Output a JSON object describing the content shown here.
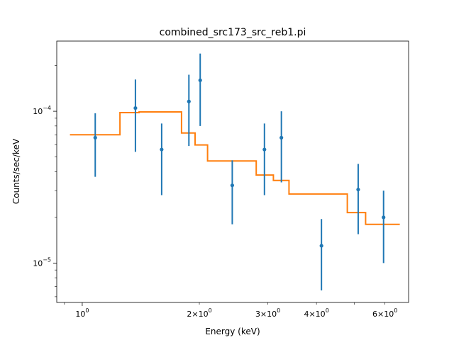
{
  "chart_data": {
    "type": "scatter",
    "title": "combined_src173_src_reb1.pi",
    "xlabel": "Energy (keV)",
    "ylabel": "Counts/sec/keV",
    "xscale": "log",
    "yscale": "log",
    "xlim": [
      0.86,
      6.9
    ],
    "ylim": [
      5.5e-06,
      0.00029
    ],
    "grid": false,
    "x_major_ticks": [
      {
        "value": 1,
        "label": "10^0"
      }
    ],
    "x_minor_ticks": [
      {
        "value": 2,
        "label": "2×10^0"
      },
      {
        "value": 3,
        "label": "3×10^0"
      },
      {
        "value": 4,
        "label": "4×10^0"
      },
      {
        "value": 6,
        "label": "6×10^0"
      },
      {
        "value": 5,
        "label": ""
      },
      {
        "value": 0.9,
        "label": ""
      }
    ],
    "y_major_ticks": [
      {
        "value": 1e-05,
        "label": "10^-5"
      },
      {
        "value": 0.0001,
        "label": "10^-4"
      }
    ],
    "y_minor_ticks": [
      6e-06,
      7e-06,
      8e-06,
      9e-06,
      2e-05,
      3e-05,
      4e-05,
      5e-05,
      6e-05,
      7e-05,
      8e-05,
      9e-05,
      0.0002
    ],
    "series": [
      {
        "type": "errorbar",
        "color": "#1f77b4",
        "points": [
          {
            "x": 1.08,
            "y": 6.7e-05,
            "ylo": 3.7e-05,
            "yhi": 9.7e-05
          },
          {
            "x": 1.37,
            "y": 0.000105,
            "ylo": 5.4e-05,
            "yhi": 0.000162
          },
          {
            "x": 1.6,
            "y": 5.6e-05,
            "ylo": 2.8e-05,
            "yhi": 8.3e-05
          },
          {
            "x": 1.88,
            "y": 0.000116,
            "ylo": 5.9e-05,
            "yhi": 0.000174
          },
          {
            "x": 2.01,
            "y": 0.00016,
            "ylo": 8e-05,
            "yhi": 0.00024
          },
          {
            "x": 2.43,
            "y": 3.25e-05,
            "ylo": 1.8e-05,
            "yhi": 4.75e-05
          },
          {
            "x": 2.94,
            "y": 5.6e-05,
            "ylo": 2.8e-05,
            "yhi": 8.3e-05
          },
          {
            "x": 3.25,
            "y": 6.7e-05,
            "ylo": 3.4e-05,
            "yhi": 0.0001
          },
          {
            "x": 4.12,
            "y": 1.3e-05,
            "ylo": 6.6e-06,
            "yhi": 1.95e-05
          },
          {
            "x": 5.12,
            "y": 3.05e-05,
            "ylo": 1.55e-05,
            "yhi": 4.5e-05
          },
          {
            "x": 5.95,
            "y": 2e-05,
            "ylo": 1e-05,
            "yhi": 3e-05
          }
        ]
      },
      {
        "type": "step",
        "color": "#ff7f0e",
        "segments": [
          {
            "x0": 0.93,
            "x1": 1.25,
            "y": 7e-05
          },
          {
            "x0": 1.25,
            "x1": 1.4,
            "y": 9.8e-05
          },
          {
            "x0": 1.4,
            "x1": 1.8,
            "y": 9.9e-05
          },
          {
            "x0": 1.8,
            "x1": 1.95,
            "y": 7.2e-05
          },
          {
            "x0": 1.95,
            "x1": 2.1,
            "y": 6e-05
          },
          {
            "x0": 2.1,
            "x1": 2.8,
            "y": 4.7e-05
          },
          {
            "x0": 2.8,
            "x1": 3.1,
            "y": 3.8e-05
          },
          {
            "x0": 3.1,
            "x1": 3.4,
            "y": 3.5e-05
          },
          {
            "x0": 3.4,
            "x1": 4.8,
            "y": 2.85e-05
          },
          {
            "x0": 4.8,
            "x1": 5.35,
            "y": 2.15e-05
          },
          {
            "x0": 5.35,
            "x1": 6.55,
            "y": 1.8e-05
          }
        ]
      }
    ]
  }
}
